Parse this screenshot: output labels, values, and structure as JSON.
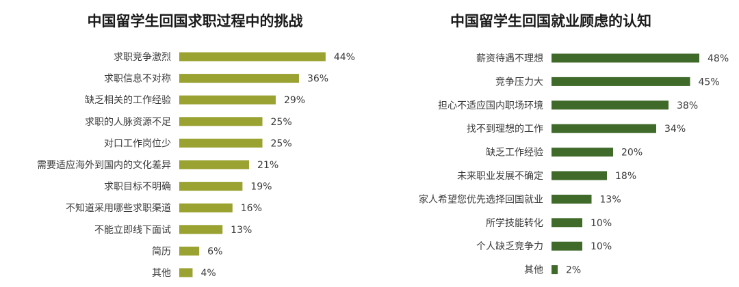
{
  "chart_data": [
    {
      "type": "bar",
      "orientation": "horizontal",
      "title": "中国留学生回国求职过程中的挑战",
      "color": "#9aa231",
      "categories": [
        "求职竞争激烈",
        "求职信息不对称",
        "缺乏相关的工作经验",
        "求职的人脉资源不足",
        "对口工作岗位少",
        "需要适应海外到国内的文化差异",
        "求职目标不明确",
        "不知道采用哪些求职渠道",
        "不能立即线下面试",
        "简历",
        "其他"
      ],
      "values": [
        44,
        36,
        29,
        25,
        25,
        21,
        19,
        16,
        13,
        6,
        4
      ],
      "labels": [
        "44%",
        "36%",
        "29%",
        "25%",
        "25%",
        "21%",
        "19%",
        "16%",
        "13%",
        "6%",
        "4%"
      ],
      "unit": "%",
      "xlim": [
        0,
        50
      ],
      "grid": false,
      "legend": "none"
    },
    {
      "type": "bar",
      "orientation": "horizontal",
      "title": "中国留学生回国就业顾虑的认知",
      "color": "#3f6a2a",
      "categories": [
        "薪资待遇不理想",
        "竞争压力大",
        "担心不适应国内职场环境",
        "找不到理想的工作",
        "缺乏工作经验",
        "未来职业发展不确定",
        "家人希望您优先选择回国就业",
        "所学技能转化",
        "个人缺乏竞争力",
        "其他"
      ],
      "values": [
        48,
        45,
        38,
        34,
        20,
        18,
        13,
        10,
        10,
        2
      ],
      "labels": [
        "48%",
        "45%",
        "38%",
        "34%",
        "20%",
        "18%",
        "13%",
        "10%",
        "10%",
        "2%"
      ],
      "unit": "%",
      "xlim": [
        0,
        50
      ],
      "grid": false,
      "legend": "none"
    }
  ]
}
